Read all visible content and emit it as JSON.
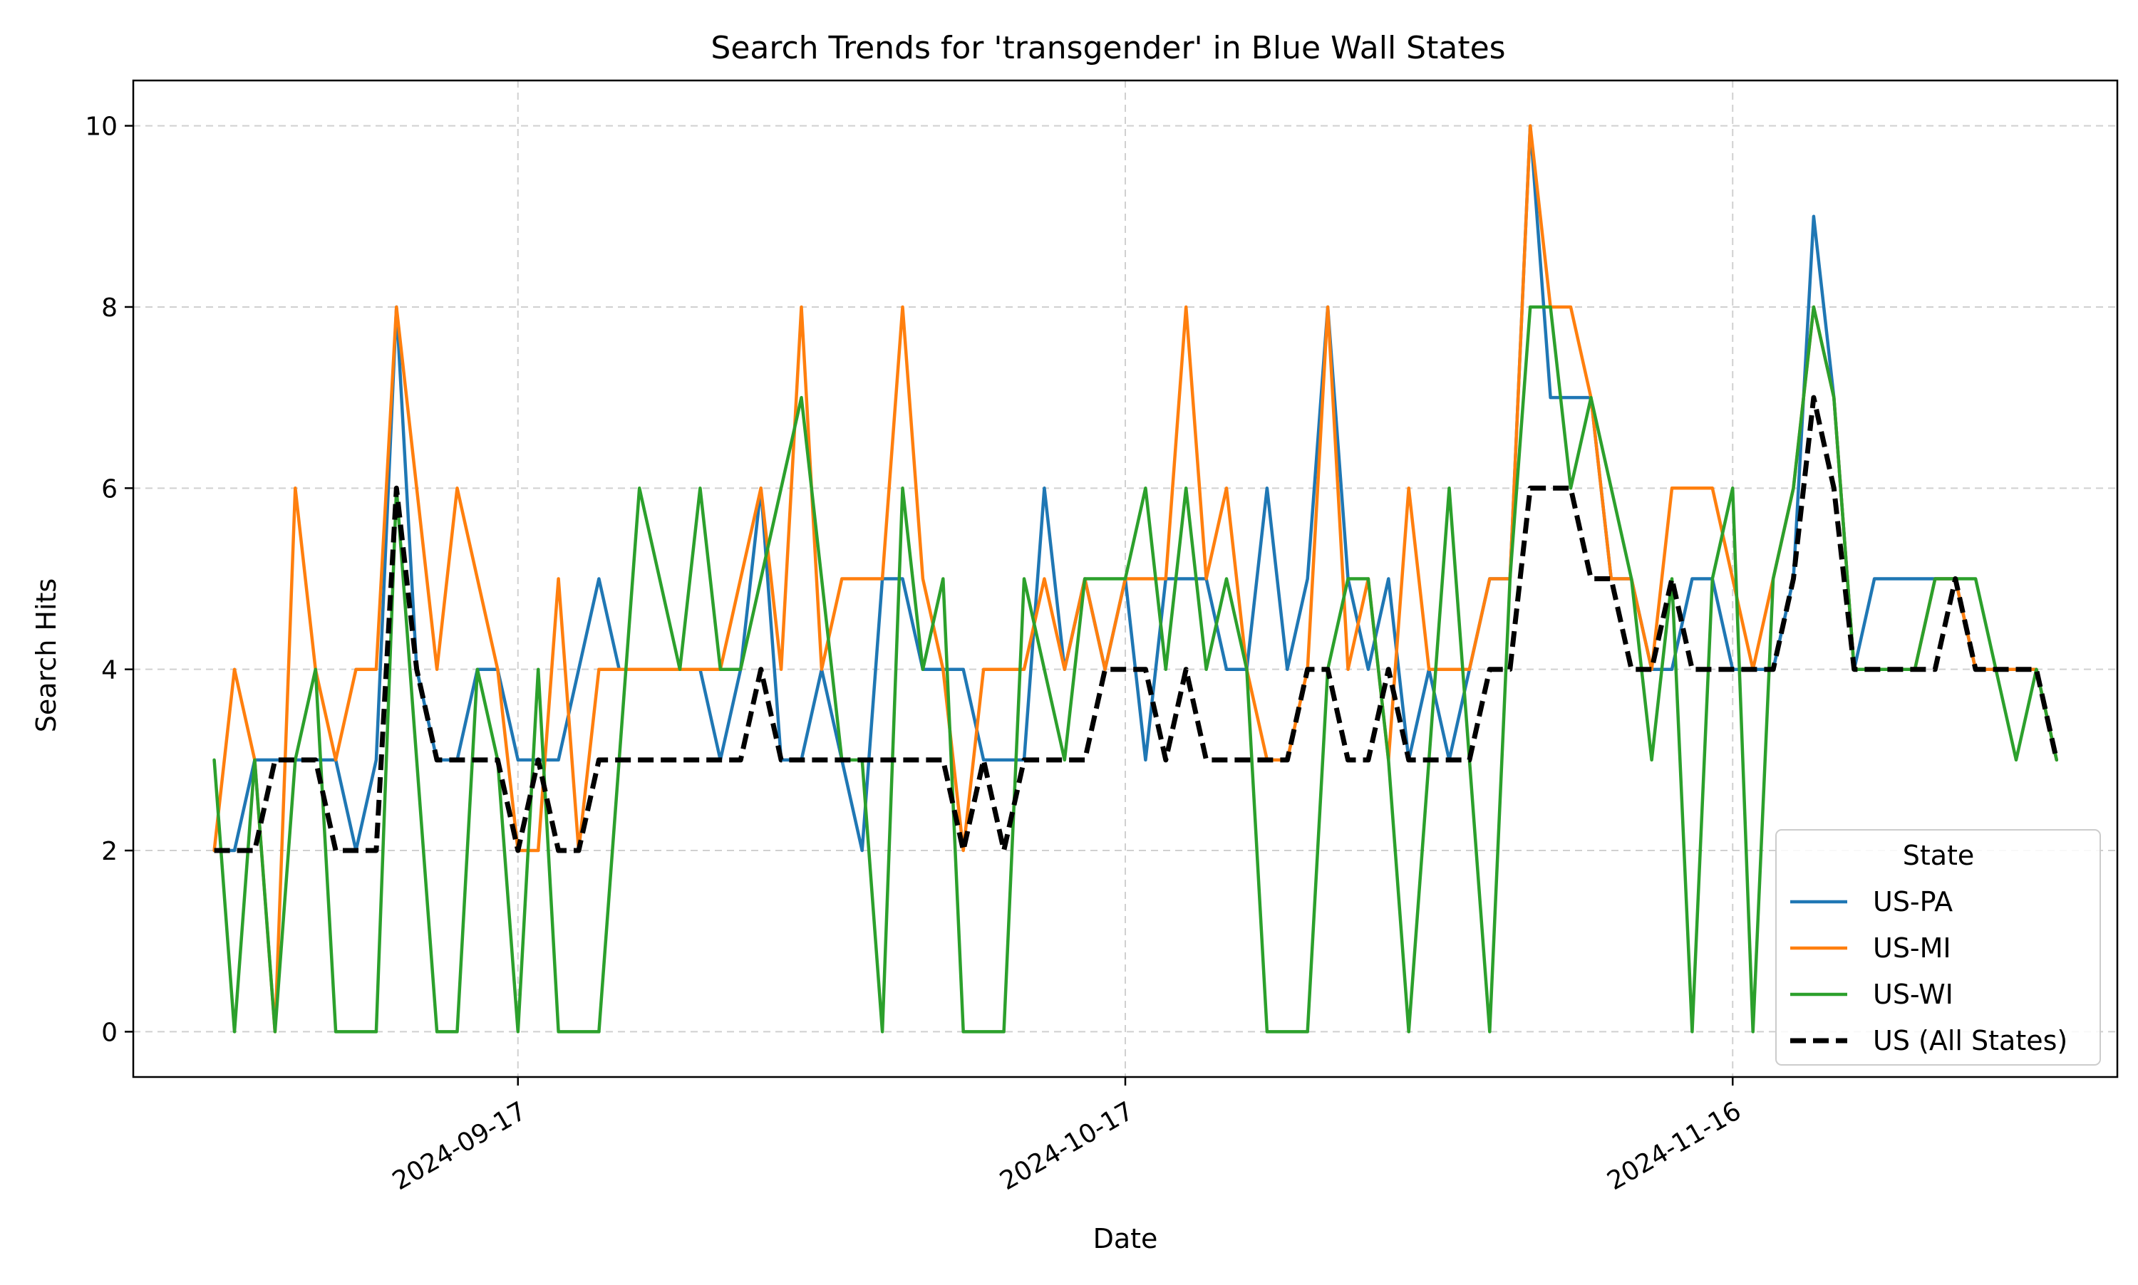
{
  "chart_data": {
    "type": "line",
    "title": "Search Trends for 'transgender' in Blue Wall States",
    "xlabel": "Date",
    "ylabel": "Search Hits",
    "x_start": "2024-09-02",
    "x_end": "2024-12-01",
    "xlim": [
      "2024-08-29",
      "2024-12-05"
    ],
    "ylim": [
      -0.5,
      10.5
    ],
    "x_ticks": [
      "2024-09-17",
      "2024-10-17",
      "2024-11-16"
    ],
    "y_ticks": [
      0,
      2,
      4,
      6,
      8,
      10
    ],
    "grid": true,
    "legend": {
      "title": "State",
      "placement": "lower-right"
    },
    "series": [
      {
        "name": "US-PA",
        "color": "#1f77b4",
        "dash": false,
        "values": [
          2,
          2,
          3,
          3,
          3,
          3,
          3,
          2,
          3,
          8,
          4,
          3,
          3,
          4,
          4,
          3,
          3,
          3,
          4,
          5,
          4,
          4,
          4,
          4,
          4,
          3,
          4,
          6,
          3,
          3,
          4,
          3,
          2,
          5,
          5,
          4,
          4,
          4,
          3,
          3,
          3,
          6,
          4,
          5,
          4,
          5,
          3,
          5,
          5,
          5,
          4,
          4,
          6,
          4,
          5,
          8,
          5,
          4,
          5,
          3,
          4,
          3,
          4,
          5,
          5,
          10,
          7,
          7,
          7,
          5,
          5,
          4,
          4,
          5,
          5,
          4,
          4,
          4,
          5,
          9,
          7,
          4,
          5,
          5,
          5,
          5,
          5,
          4,
          4,
          4,
          4,
          3
        ]
      },
      {
        "name": "US-MI",
        "color": "#ff7f0e",
        "dash": false,
        "values": [
          2,
          4,
          3,
          0,
          6,
          4,
          3,
          4,
          4,
          8,
          6,
          4,
          6,
          5,
          4,
          2,
          2,
          5,
          2,
          4,
          4,
          4,
          4,
          4,
          4,
          4,
          5,
          6,
          4,
          8,
          4,
          5,
          5,
          5,
          8,
          5,
          4,
          2,
          4,
          4,
          4,
          5,
          4,
          5,
          4,
          5,
          5,
          5,
          8,
          5,
          6,
          4,
          3,
          3,
          4,
          8,
          4,
          5,
          3,
          6,
          4,
          4,
          4,
          5,
          5,
          10,
          8,
          8,
          7,
          5,
          5,
          4,
          6,
          6,
          6,
          5,
          4,
          5,
          6,
          8,
          7,
          4,
          4,
          4,
          4,
          5,
          5,
          4,
          4,
          4,
          4,
          3
        ]
      },
      {
        "name": "US-WI",
        "color": "#2ca02c",
        "dash": false,
        "values": [
          3,
          0,
          3,
          0,
          3,
          4,
          0,
          0,
          0,
          6,
          3,
          0,
          0,
          4,
          3,
          0,
          4,
          0,
          0,
          0,
          3,
          6,
          5,
          4,
          6,
          4,
          4,
          5,
          6,
          7,
          5,
          3,
          3,
          0,
          6,
          4,
          5,
          0,
          0,
          0,
          5,
          4,
          3,
          5,
          5,
          5,
          6,
          4,
          6,
          4,
          5,
          4,
          0,
          0,
          0,
          4,
          5,
          5,
          3,
          0,
          3,
          6,
          3,
          0,
          5,
          8,
          8,
          6,
          7,
          6,
          5,
          3,
          5,
          0,
          5,
          6,
          0,
          5,
          6,
          8,
          7,
          4,
          4,
          4,
          4,
          5,
          5,
          5,
          4,
          3,
          4,
          3
        ]
      },
      {
        "name": "US (All States)",
        "color": "#000000",
        "dash": true,
        "values": [
          2,
          2,
          2,
          3,
          3,
          3,
          2,
          2,
          2,
          6,
          4,
          3,
          3,
          3,
          3,
          2,
          3,
          2,
          2,
          3,
          3,
          3,
          3,
          3,
          3,
          3,
          3,
          4,
          3,
          3,
          3,
          3,
          3,
          3,
          3,
          3,
          3,
          2,
          3,
          2,
          3,
          3,
          3,
          3,
          4,
          4,
          4,
          3,
          4,
          3,
          3,
          3,
          3,
          3,
          4,
          4,
          3,
          3,
          4,
          3,
          3,
          3,
          3,
          4,
          4,
          6,
          6,
          6,
          5,
          5,
          4,
          4,
          5,
          4,
          4,
          4,
          4,
          4,
          5,
          7,
          6,
          4,
          4,
          4,
          4,
          4,
          5,
          4,
          4,
          4,
          4,
          3
        ]
      }
    ]
  }
}
